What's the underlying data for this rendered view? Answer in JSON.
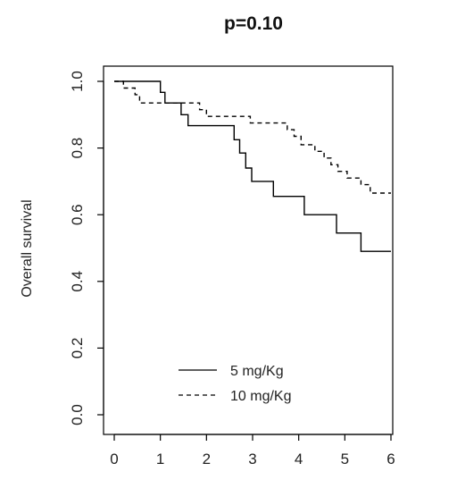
{
  "chart_data": {
    "type": "line",
    "title": "p=0.10",
    "xlabel": "",
    "ylabel": "Overall survival",
    "xlim": [
      0,
      6
    ],
    "ylim": [
      0,
      1.0
    ],
    "xticks": [
      "0",
      "1",
      "2",
      "3",
      "4",
      "5",
      "6"
    ],
    "yticks": [
      "0.0",
      "0.2",
      "0.4",
      "0.6",
      "0.8",
      "1.0"
    ],
    "grid": false,
    "legend_position": "bottom-center",
    "series": [
      {
        "name": "5 mg/Kg",
        "line_style": "solid",
        "color": "#000000",
        "x": [
          0,
          1.0,
          1.1,
          1.45,
          1.6,
          2.6,
          2.72,
          2.85,
          2.98,
          3.1,
          3.45,
          4.12,
          4.82,
          5.35,
          6.0
        ],
        "y": [
          1.0,
          0.967,
          0.935,
          0.9,
          0.867,
          0.825,
          0.785,
          0.74,
          0.7,
          0.7,
          0.655,
          0.6,
          0.545,
          0.49,
          0.49
        ]
      },
      {
        "name": "10 mg/Kg",
        "line_style": "dashed",
        "color": "#000000",
        "x": [
          0,
          0.2,
          0.45,
          0.55,
          1.2,
          1.85,
          2.0,
          2.95,
          3.75,
          3.9,
          4.05,
          4.35,
          4.55,
          4.7,
          4.85,
          5.05,
          5.35,
          5.55,
          6.0
        ],
        "y": [
          1.0,
          0.98,
          0.96,
          0.935,
          0.935,
          0.915,
          0.895,
          0.875,
          0.855,
          0.835,
          0.81,
          0.79,
          0.77,
          0.75,
          0.73,
          0.71,
          0.69,
          0.665,
          0.665
        ]
      }
    ]
  }
}
